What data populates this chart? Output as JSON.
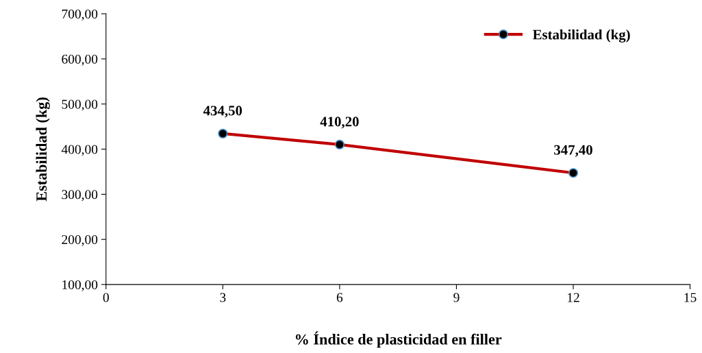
{
  "chart_data": {
    "type": "line",
    "xlabel": "% Índice de plasticidad en filler",
    "ylabel": "Estabilidad (kg)",
    "x": [
      3,
      6,
      12
    ],
    "series": [
      {
        "name": "Estabilidad (kg)",
        "color": "#c00000",
        "values": [
          434.5,
          410.2,
          347.4
        ],
        "value_labels": [
          "434,50",
          "410,20",
          "347,40"
        ]
      }
    ],
    "xlim": [
      0,
      15
    ],
    "xticks": [
      0,
      3,
      6,
      9,
      12,
      15
    ],
    "ylim": [
      100,
      700
    ],
    "yticks": [
      {
        "value": 100,
        "label": "100,00"
      },
      {
        "value": 200,
        "label": "200,00"
      },
      {
        "value": 300,
        "label": "300,00"
      },
      {
        "value": 400,
        "label": "400,00"
      },
      {
        "value": 500,
        "label": "500,00"
      },
      {
        "value": 600,
        "label": "600,00"
      },
      {
        "value": 700,
        "label": "700,00"
      }
    ],
    "marker": "circle",
    "line_style": "solid",
    "grid": false,
    "legend": "top right"
  }
}
